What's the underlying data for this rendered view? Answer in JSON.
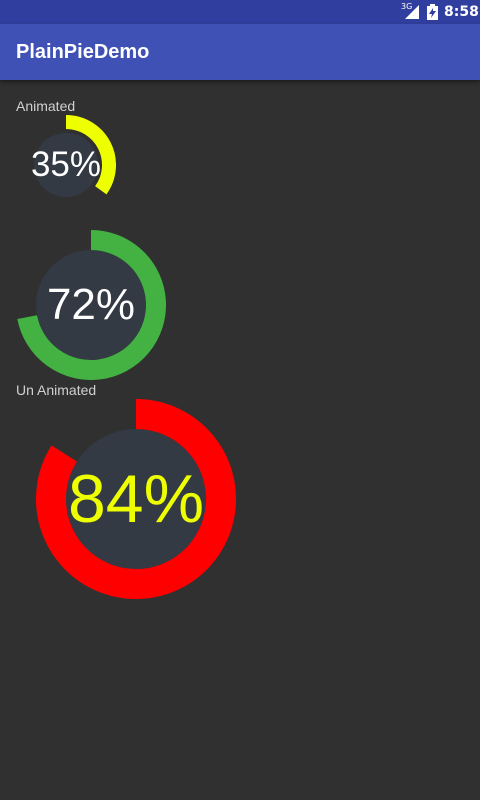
{
  "status_bar": {
    "network_label": "3G",
    "time": "8:58",
    "icons": [
      "signal-icon",
      "battery-icon"
    ],
    "background": "#303f9f"
  },
  "app_bar": {
    "title": "PlainPieDemo",
    "background": "#3f51b5"
  },
  "sections": {
    "animated_label": "Animated",
    "un_animated_label": "Un Animated"
  },
  "pies": [
    {
      "name": "animated-pie-small",
      "percent": 35,
      "label": "35%",
      "arc_color": "#eeff00",
      "inner_color": "#333a44",
      "text_color": "#ffffff"
    },
    {
      "name": "animated-pie-medium",
      "percent": 72,
      "label": "72%",
      "arc_color": "#43b243",
      "inner_color": "#333a44",
      "text_color": "#ffffff"
    },
    {
      "name": "un-animated-pie",
      "percent": 84,
      "label": "84%",
      "arc_color": "#ff0000",
      "inner_color": "#333a44",
      "text_color": "#eeff00"
    }
  ],
  "colors": {
    "page_background": "#303030",
    "label_text": "#d0d0d0"
  }
}
